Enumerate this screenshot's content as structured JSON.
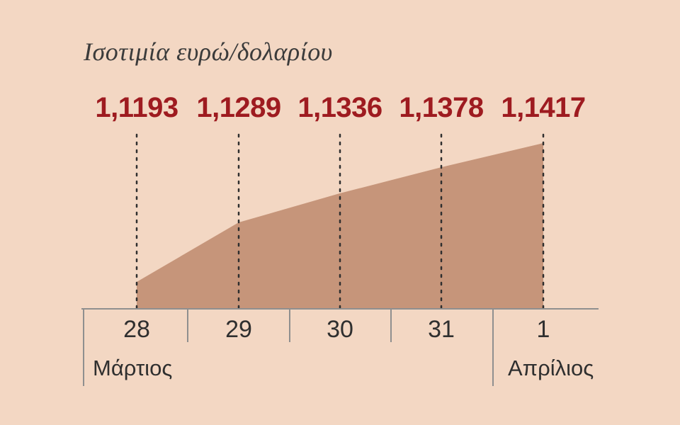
{
  "title": "Ισοτιμία ευρώ/δολαρίου",
  "colors": {
    "background": "#f3d7c3",
    "area_fill": "#c6957a",
    "value_text": "#9e1b20",
    "axis": "#8f8f8f",
    "guide_dots": "#2f2f2f",
    "text": "#2f2f2f"
  },
  "chart_data": {
    "type": "area",
    "title": "Ισοτιμία ευρώ/δολαρίου",
    "x": [
      "28",
      "29",
      "30",
      "31",
      "1"
    ],
    "values": [
      1.1193,
      1.1289,
      1.1336,
      1.1378,
      1.1417
    ],
    "value_labels": [
      "1,1193",
      "1,1289",
      "1,1336",
      "1,1378",
      "1,1417"
    ],
    "month_labels": [
      {
        "label": "Μάρτιος",
        "position": "left"
      },
      {
        "label": "Απρίλιος",
        "position": "right"
      }
    ],
    "xlabel": "",
    "ylabel": "",
    "ylim": [
      1.1085,
      1.1417
    ],
    "grid": "dotted-vertical-guides",
    "legend": "none"
  }
}
